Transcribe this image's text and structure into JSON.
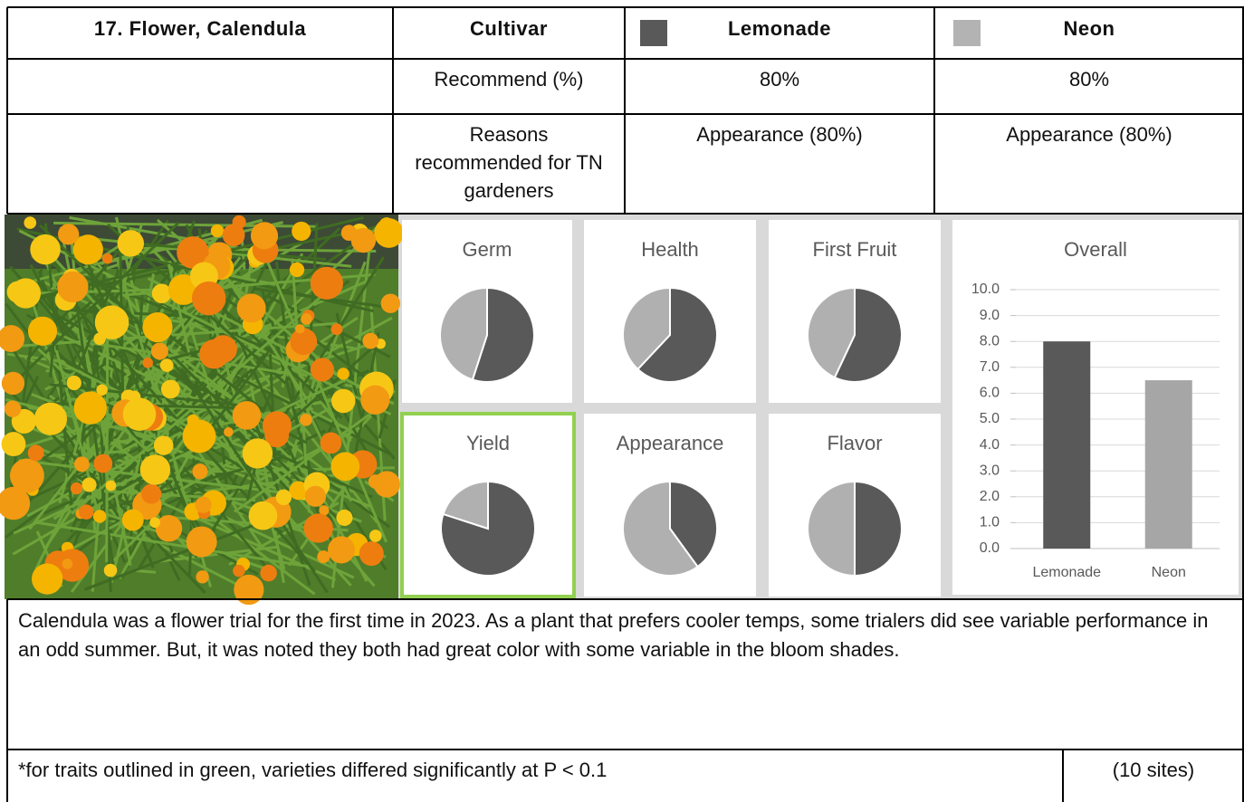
{
  "table": {
    "header": [
      "17. Flower, Calendula",
      "Cultivar",
      "Lemonade",
      "Neon"
    ],
    "swatch_colors": [
      "#595959",
      "#b3b3b3"
    ],
    "rows": [
      {
        "label": "Recommend (%)",
        "values": [
          "80%",
          "80%"
        ]
      },
      {
        "label": "Reasons recommended for TN gardeners",
        "values": [
          "Appearance (80%)",
          "Appearance (80%)"
        ]
      }
    ]
  },
  "chart_data": [
    {
      "type": "pie",
      "title": "Germ",
      "values": [
        55,
        45
      ],
      "colors": [
        "#595959",
        "#b0b0b0"
      ]
    },
    {
      "type": "pie",
      "title": "Health",
      "values": [
        62,
        38
      ],
      "colors": [
        "#595959",
        "#b0b0b0"
      ]
    },
    {
      "type": "pie",
      "title": "First Fruit",
      "values": [
        57,
        43
      ],
      "colors": [
        "#595959",
        "#b0b0b0"
      ]
    },
    {
      "type": "pie",
      "title": "Yield",
      "values": [
        80,
        20
      ],
      "colors": [
        "#595959",
        "#b0b0b0"
      ],
      "outline": "#92d050"
    },
    {
      "type": "pie",
      "title": "Appearance",
      "values": [
        40,
        60
      ],
      "colors": [
        "#595959",
        "#b0b0b0"
      ]
    },
    {
      "type": "pie",
      "title": "Flavor",
      "values": [
        50,
        50
      ],
      "colors": [
        "#595959",
        "#b0b0b0"
      ]
    },
    {
      "type": "bar",
      "title": "Overall",
      "categories": [
        "Lemonade",
        "Neon"
      ],
      "values": [
        8.0,
        6.5
      ],
      "colors": [
        "#595959",
        "#a6a6a6"
      ],
      "ylim": [
        0,
        10
      ],
      "grid": true,
      "yticks": [
        {
          "value": 0,
          "label": "0.0"
        },
        {
          "value": 1,
          "label": "1.0"
        },
        {
          "value": 2,
          "label": "2.0"
        },
        {
          "value": 3,
          "label": "3.0"
        },
        {
          "value": 4,
          "label": "4.0"
        },
        {
          "value": 5,
          "label": "5.0"
        },
        {
          "value": 6,
          "label": "6.0"
        },
        {
          "value": 7,
          "label": "7.0"
        },
        {
          "value": 8,
          "label": "8.0"
        },
        {
          "value": 9,
          "label": "9.0"
        },
        {
          "value": 10,
          "label": "10.0"
        }
      ]
    }
  ],
  "description": "Calendula was a flower trial for the first time in 2023. As a plant that prefers cooler temps, some trialers did see variable performance in an odd summer. But, it was noted they both had great color with some variable in the bloom shades.",
  "footnote": "*for traits outlined in green, varieties differed significantly at P < 0.1",
  "sites": "(10 sites)"
}
